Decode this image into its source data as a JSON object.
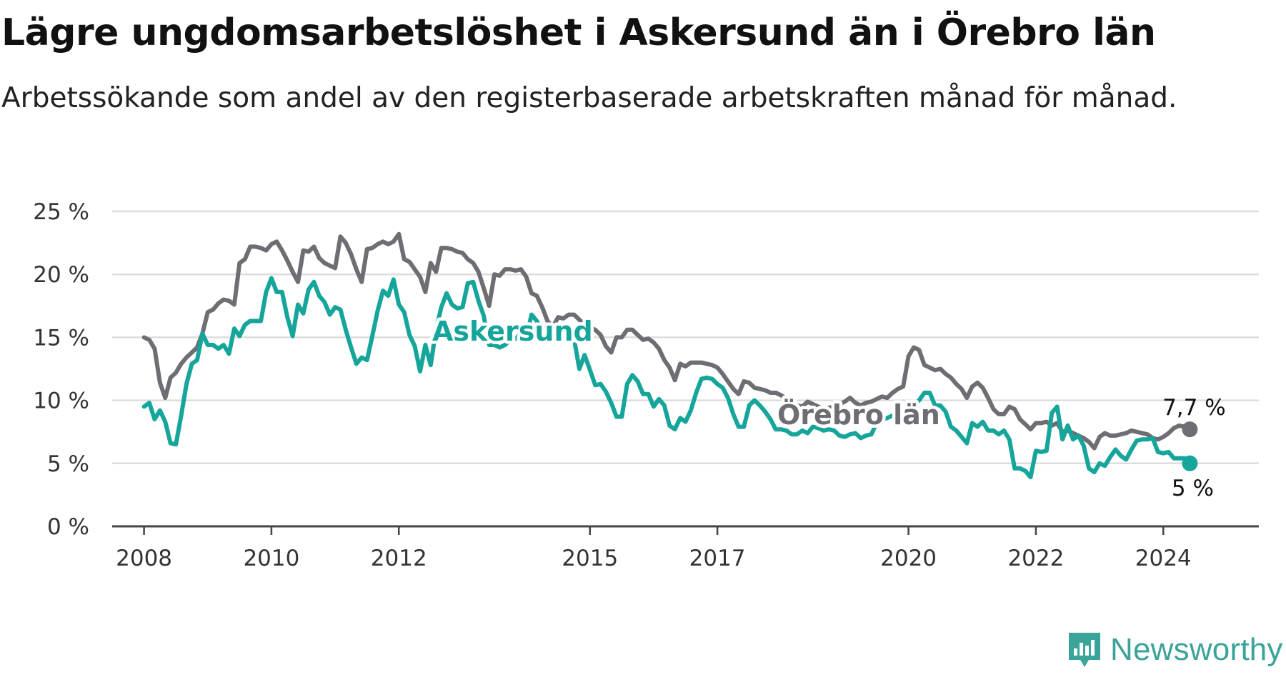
{
  "title": "Lägre ungdomsarbetslöshet i Askersund än i Örebro län",
  "subtitle": "Arbetssökande som andel av den registerbaserade arbetskraften månad för månad.",
  "brand": {
    "name": "Newsworthy",
    "icon": "newsworthy-chart-logo-icon",
    "color": "#3aa39a"
  },
  "colors": {
    "askersund": "#15a59a",
    "orebro": "#6f6d73",
    "grid": "#dddddd",
    "axis": "#444444"
  },
  "chart_data": {
    "type": "line",
    "title": "Lägre ungdomsarbetslöshet i Askersund än i Örebro län",
    "subtitle": "Arbetssökande som andel av den registerbaserade arbetskraften månad för månad.",
    "xlabel": "",
    "ylabel": "",
    "x_start": "2008-01",
    "x_frequency": "monthly",
    "xlim": [
      2007.5,
      2025.5
    ],
    "ylim": [
      0,
      25
    ],
    "y_ticks": [
      0,
      5,
      10,
      15,
      20,
      25
    ],
    "y_tick_labels": [
      "0 %",
      "5 %",
      "10 %",
      "15 %",
      "20 %",
      "25 %"
    ],
    "x_ticks": [
      2008,
      2010,
      2012,
      2015,
      2017,
      2020,
      2022,
      2024
    ],
    "x_tick_labels": [
      "2008",
      "2010",
      "2012",
      "2015",
      "2017",
      "2020",
      "2022",
      "2024"
    ],
    "grid": true,
    "legend": "none",
    "series": [
      {
        "name": "Askersund",
        "color": "#15a59a",
        "end_label": "5 %",
        "values": [
          9.5,
          9.8,
          8.5,
          9.2,
          8.3,
          6.6,
          6.5,
          8.8,
          11.3,
          12.9,
          13.2,
          15.3,
          14.4,
          14.4,
          14.1,
          14.4,
          13.7,
          15.7,
          15.1,
          16.0,
          16.3,
          16.3,
          16.3,
          18.6,
          19.7,
          18.6,
          18.6,
          16.6,
          15.1,
          17.6,
          16.9,
          18.8,
          19.4,
          18.3,
          17.8,
          16.8,
          17.4,
          17.2,
          15.6,
          14.2,
          12.9,
          13.4,
          13.2,
          15.1,
          17.1,
          18.7,
          18.3,
          19.6,
          17.6,
          17.0,
          15.2,
          14.3,
          12.3,
          14.4,
          12.8,
          15.6,
          17.4,
          18.5,
          17.6,
          17.3,
          17.4,
          19.3,
          19.4,
          17.9,
          16.7,
          14.4,
          14.4,
          14.2,
          14.4,
          14.8,
          14.9,
          15.3,
          15.0,
          16.8,
          16.3,
          15.6,
          15.2,
          14.9,
          15.0,
          14.9,
          14.8,
          14.9,
          12.5,
          13.6,
          12.4,
          11.2,
          11.3,
          10.7,
          9.8,
          8.7,
          8.7,
          11.3,
          12.0,
          11.5,
          10.5,
          10.5,
          9.5,
          10.1,
          9.6,
          8.0,
          7.7,
          8.6,
          8.3,
          9.2,
          10.6,
          11.7,
          11.8,
          11.7,
          11.3,
          11.0,
          10.2,
          8.9,
          7.9,
          7.9,
          9.6,
          10.0,
          9.6,
          9.1,
          8.5,
          7.7,
          7.7,
          7.6,
          7.3,
          7.3,
          7.6,
          7.4,
          7.9,
          7.8,
          7.6,
          7.7,
          7.6,
          7.2,
          7.1,
          7.3,
          7.4,
          7.0,
          7.2,
          7.3,
          8.2,
          8.5,
          8.6,
          8.8,
          8.8,
          8.9,
          9.2,
          9.6,
          10.0,
          10.6,
          10.6,
          9.6,
          9.6,
          9.1,
          7.9,
          7.6,
          7.1,
          6.6,
          8.2,
          7.9,
          8.3,
          7.6,
          7.6,
          7.3,
          7.6,
          6.9,
          4.6,
          4.6,
          4.4,
          3.9,
          6.0,
          5.9,
          6.0,
          9.0,
          9.5,
          6.9,
          8.0,
          6.9,
          7.2,
          6.4,
          4.6,
          4.3,
          5.0,
          4.8,
          5.5,
          6.1,
          5.6,
          5.3,
          6.1,
          6.8,
          6.9,
          6.9,
          7.0,
          5.9,
          5.8,
          5.9,
          5.4,
          5.4,
          5.4,
          5.0
        ]
      },
      {
        "name": "Örebro län",
        "color": "#6f6d73",
        "end_label": "7,7 %",
        "values": [
          15.0,
          14.8,
          14.1,
          11.4,
          10.2,
          11.8,
          12.2,
          12.9,
          13.4,
          13.8,
          14.2,
          15.3,
          17.0,
          17.2,
          17.7,
          18.0,
          17.9,
          17.6,
          20.9,
          21.2,
          22.2,
          22.2,
          22.1,
          21.9,
          22.4,
          22.6,
          21.9,
          21.1,
          20.2,
          19.4,
          21.9,
          21.8,
          22.2,
          21.3,
          20.9,
          20.7,
          20.5,
          23.0,
          22.5,
          21.6,
          20.4,
          19.4,
          22.0,
          22.1,
          22.4,
          22.6,
          22.4,
          22.6,
          23.2,
          21.2,
          21.0,
          20.4,
          19.8,
          18.6,
          20.9,
          20.2,
          22.1,
          22.1,
          22.0,
          21.8,
          21.7,
          21.2,
          20.9,
          20.2,
          18.9,
          17.5,
          20.0,
          19.9,
          20.4,
          20.4,
          20.3,
          20.4,
          19.8,
          18.5,
          18.3,
          17.4,
          16.3,
          15.8,
          16.6,
          16.5,
          16.8,
          16.8,
          16.4,
          16.0,
          15.8,
          15.6,
          15.2,
          14.3,
          13.8,
          15.0,
          15.0,
          15.6,
          15.6,
          15.2,
          14.8,
          14.9,
          14.6,
          14.1,
          13.2,
          12.6,
          11.6,
          12.9,
          12.7,
          13.0,
          13.0,
          13.0,
          12.9,
          12.8,
          12.6,
          12.1,
          11.5,
          10.9,
          10.5,
          11.5,
          11.4,
          11.0,
          10.9,
          10.8,
          10.6,
          10.6,
          10.4,
          10.1,
          9.7,
          9.6,
          9.5,
          9.9,
          9.7,
          9.5,
          9.3,
          9.4,
          9.5,
          9.7,
          9.9,
          10.2,
          9.8,
          9.6,
          9.8,
          9.9,
          10.1,
          10.3,
          10.2,
          10.6,
          10.9,
          11.1,
          13.5,
          14.2,
          14.0,
          12.8,
          12.6,
          12.4,
          12.5,
          12.1,
          11.8,
          11.3,
          10.9,
          10.2,
          11.1,
          11.4,
          11.0,
          10.2,
          9.3,
          8.9,
          8.9,
          9.5,
          9.3,
          8.5,
          8.1,
          7.7,
          8.2,
          8.2,
          8.3,
          8.0,
          8.2,
          7.5,
          7.6,
          7.4,
          7.2,
          7.0,
          6.7,
          6.2,
          7.1,
          7.4,
          7.2,
          7.2,
          7.3,
          7.4,
          7.6,
          7.5,
          7.4,
          7.3,
          7.0,
          6.9,
          7.1,
          7.4,
          7.8,
          8.0,
          7.9,
          7.7
        ]
      }
    ]
  }
}
